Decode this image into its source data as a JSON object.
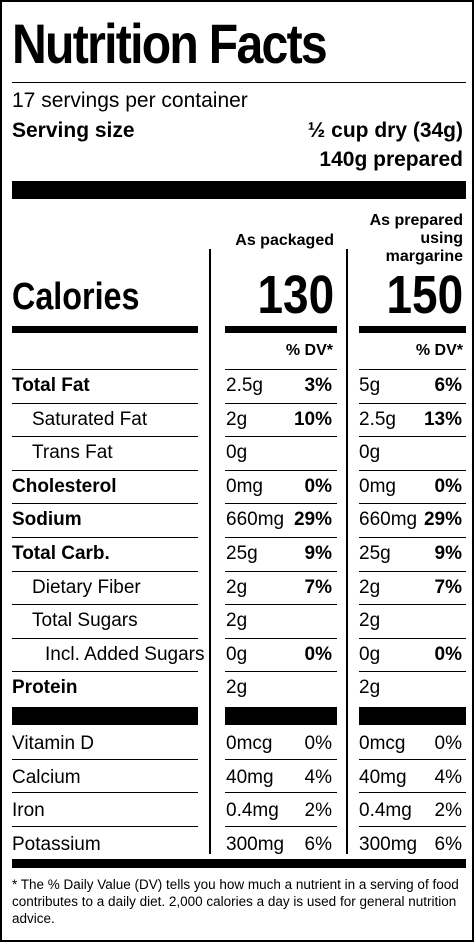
{
  "title": "Nutrition Facts",
  "servings": "17 servings per container",
  "serving_size_label": "Serving size",
  "serving_size_dry": "½ cup dry (34g)",
  "serving_size_prepared": "140g prepared",
  "columns": {
    "packaged": "As packaged",
    "prepared_line1": "As prepared",
    "prepared_line2": "using",
    "prepared_line3": "margarine"
  },
  "calories": {
    "label": "Calories",
    "packaged": "130",
    "prepared": "150"
  },
  "dv_header": "% DV*",
  "nutrients": [
    {
      "name": "Total Fat",
      "bold": true,
      "indent": 0,
      "pk_amt": "2.5g",
      "pk_dv": "3%",
      "pr_amt": "5g",
      "pr_dv": "6%"
    },
    {
      "name": "Saturated Fat",
      "bold": false,
      "indent": 1,
      "pk_amt": "2g",
      "pk_dv": "10%",
      "pr_amt": "2.5g",
      "pr_dv": "13%"
    },
    {
      "name": "Trans Fat",
      "bold": false,
      "indent": 1,
      "pk_amt": "0g",
      "pk_dv": "",
      "pr_amt": "0g",
      "pr_dv": ""
    },
    {
      "name": "Cholesterol",
      "bold": true,
      "indent": 0,
      "pk_amt": "0mg",
      "pk_dv": "0%",
      "pr_amt": "0mg",
      "pr_dv": "0%"
    },
    {
      "name": "Sodium",
      "bold": true,
      "indent": 0,
      "pk_amt": "660mg",
      "pk_dv": "29%",
      "pr_amt": "660mg",
      "pr_dv": "29%"
    },
    {
      "name": "Total Carb.",
      "bold": true,
      "indent": 0,
      "pk_amt": "25g",
      "pk_dv": "9%",
      "pr_amt": "25g",
      "pr_dv": "9%"
    },
    {
      "name": "Dietary Fiber",
      "bold": false,
      "indent": 1,
      "pk_amt": "2g",
      "pk_dv": "7%",
      "pr_amt": "2g",
      "pr_dv": "7%"
    },
    {
      "name": "Total Sugars",
      "bold": false,
      "indent": 1,
      "pk_amt": "2g",
      "pk_dv": "",
      "pr_amt": "2g",
      "pr_dv": ""
    },
    {
      "name": "Incl. Added Sugars",
      "bold": false,
      "indent": 2,
      "pk_amt": "0g",
      "pk_dv": "0%",
      "pr_amt": "0g",
      "pr_dv": "0%"
    },
    {
      "name": "Protein",
      "bold": true,
      "indent": 0,
      "pk_amt": "2g",
      "pk_dv": "",
      "pr_amt": "2g",
      "pr_dv": ""
    }
  ],
  "vitamins": [
    {
      "name": "Vitamin D",
      "pk_amt": "0mcg",
      "pk_dv": "0%",
      "pr_amt": "0mcg",
      "pr_dv": "0%"
    },
    {
      "name": "Calcium",
      "pk_amt": "40mg",
      "pk_dv": "4%",
      "pr_amt": "40mg",
      "pr_dv": "4%"
    },
    {
      "name": "Iron",
      "pk_amt": "0.4mg",
      "pk_dv": "2%",
      "pr_amt": "0.4mg",
      "pr_dv": "2%"
    },
    {
      "name": "Potassium",
      "pk_amt": "300mg",
      "pk_dv": "6%",
      "pr_amt": "300mg",
      "pr_dv": "6%"
    }
  ],
  "footnote": "* The % Daily Value (DV) tells you how much a nutrient in a serving of food contributes to a daily diet. 2,000 calories a day is used for general nutrition advice."
}
